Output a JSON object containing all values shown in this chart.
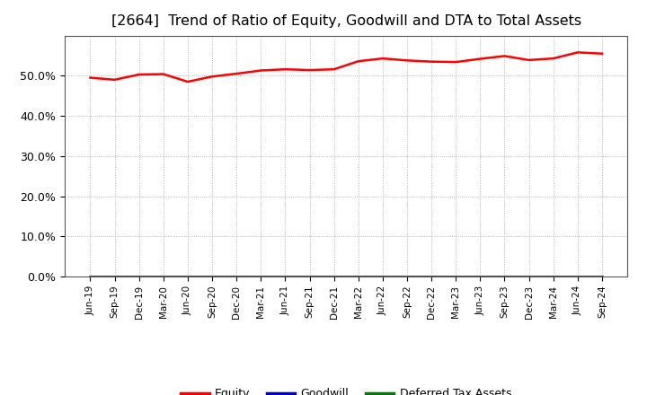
{
  "title": "[2664]  Trend of Ratio of Equity, Goodwill and DTA to Total Assets",
  "x_labels": [
    "Jun-19",
    "Sep-19",
    "Dec-19",
    "Mar-20",
    "Jun-20",
    "Sep-20",
    "Dec-20",
    "Mar-21",
    "Jun-21",
    "Sep-21",
    "Dec-21",
    "Mar-22",
    "Jun-22",
    "Sep-22",
    "Dec-22",
    "Mar-23",
    "Jun-23",
    "Sep-23",
    "Dec-23",
    "Mar-24",
    "Jun-24",
    "Sep-24"
  ],
  "equity": [
    49.5,
    49.0,
    50.3,
    50.4,
    48.5,
    49.8,
    50.5,
    51.3,
    51.6,
    51.4,
    51.6,
    53.6,
    54.3,
    53.8,
    53.5,
    53.4,
    54.2,
    54.9,
    53.9,
    54.3,
    55.8,
    55.5
  ],
  "goodwill": [
    0.0,
    0.0,
    0.0,
    0.0,
    0.0,
    0.0,
    0.0,
    0.0,
    0.0,
    0.0,
    0.0,
    0.0,
    0.0,
    0.0,
    0.0,
    0.0,
    0.0,
    0.0,
    0.0,
    0.0,
    0.0,
    0.0
  ],
  "dta": [
    0.0,
    0.0,
    0.0,
    0.0,
    0.0,
    0.0,
    0.0,
    0.0,
    0.0,
    0.0,
    0.0,
    0.0,
    0.0,
    0.0,
    0.0,
    0.0,
    0.0,
    0.0,
    0.0,
    0.0,
    0.0,
    0.0
  ],
  "equity_color": "#ff0000",
  "goodwill_color": "#0000cc",
  "dta_color": "#008000",
  "ylim": [
    0,
    60
  ],
  "yticks": [
    0,
    10,
    20,
    30,
    40,
    50
  ],
  "ytick_labels": [
    "0.0%",
    "10.0%",
    "20.0%",
    "30.0%",
    "40.0%",
    "50.0%"
  ],
  "background_color": "#ffffff",
  "plot_bg_color": "#ffffff",
  "grid_color": "#999999",
  "title_fontsize": 11.5,
  "legend_labels": [
    "Equity",
    "Goodwill",
    "Deferred Tax Assets"
  ]
}
